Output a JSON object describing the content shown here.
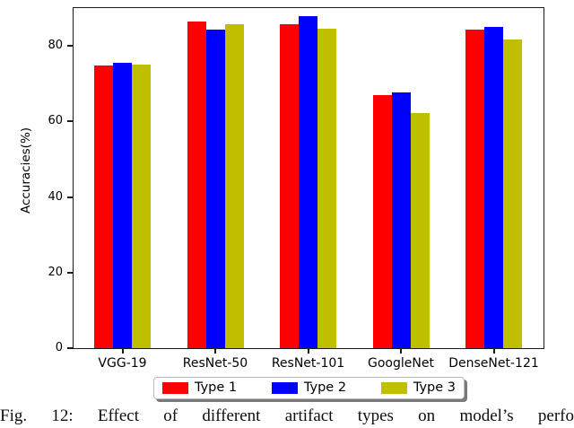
{
  "figure": {
    "caption": "Fig. 12: Effect of different artifact types on model’s perfo"
  },
  "chart_data": {
    "type": "bar",
    "title": "",
    "categories": [
      "VGG-19",
      "ResNet-50",
      "ResNet-101",
      "GoogleNet",
      "DenseNet-121"
    ],
    "series": [
      {
        "name": "Type 1",
        "color": "#ff0000",
        "values": [
          74.7,
          86.4,
          85.7,
          67.0,
          84.4
        ]
      },
      {
        "name": "Type 2",
        "color": "#0000ff",
        "values": [
          75.6,
          84.2,
          87.9,
          67.8,
          84.9
        ]
      },
      {
        "name": "Type 3",
        "color": "#bfbf00",
        "values": [
          75.0,
          85.7,
          84.5,
          62.3,
          81.7
        ]
      }
    ],
    "xlabel": "",
    "ylabel": "Accuracies(%)",
    "yticks": [
      0,
      20,
      40,
      60,
      80
    ],
    "ylim": [
      0,
      90
    ],
    "grid": false,
    "legend": {
      "position": "bottom-center",
      "labels": [
        "Type 1",
        "Type 2",
        "Type 3"
      ]
    }
  }
}
